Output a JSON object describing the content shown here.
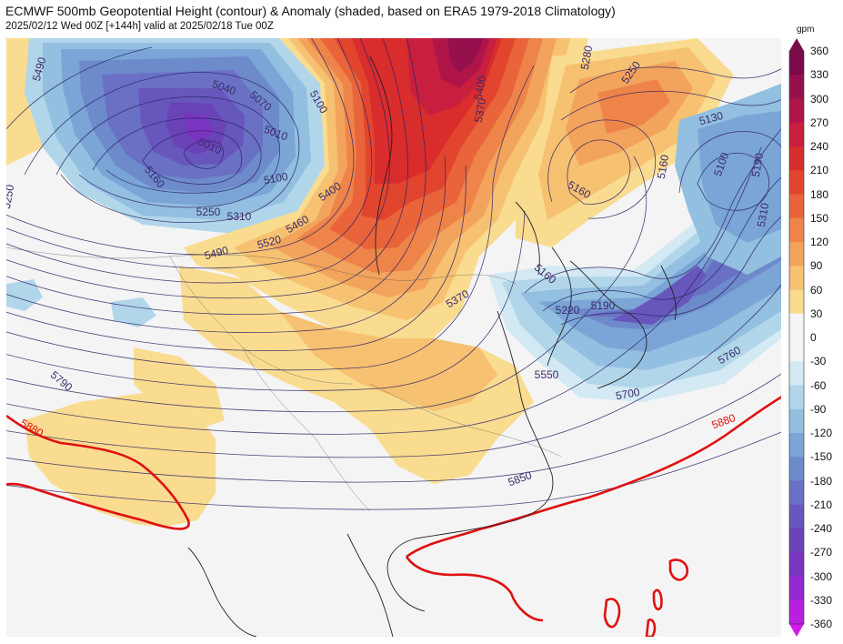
{
  "title": "ECMWF 500mb Geopotential Height (contour) & Anomaly (shaded, based on ERA5 1979-2018 Climatology)",
  "subtitle": "2025/02/12 Wed 00Z [+144h] valid at 2025/02/18 Tue 00Z",
  "colorbar": {
    "unit": "gpm",
    "ticks": [
      "360",
      "330",
      "300",
      "270",
      "240",
      "210",
      "180",
      "150",
      "120",
      "90",
      "60",
      "30",
      "0",
      "-30",
      "-60",
      "-90",
      "-120",
      "-150",
      "-180",
      "-210",
      "-240",
      "-270",
      "-300",
      "-330",
      "-360"
    ],
    "colors": [
      "#7a0a4a",
      "#96104d",
      "#b0154a",
      "#c81f3e",
      "#d92c2c",
      "#e2452e",
      "#e9643a",
      "#ee8449",
      "#f2a35c",
      "#f6c170",
      "#f9dc90",
      "#f5f5f5",
      "#f5f5f5",
      "#d3e9f3",
      "#b1d6ea",
      "#93bfe0",
      "#7aa5d6",
      "#6d8acb",
      "#6a70c4",
      "#6757bc",
      "#6a43b7",
      "#7a35c0",
      "#9528d0",
      "#b91fe0",
      "#d618ee"
    ]
  },
  "contour_labels": [
    {
      "text": "5490",
      "color": "#3c2a6a"
    },
    {
      "text": "5040",
      "color": "#3c2a6a"
    },
    {
      "text": "5070",
      "color": "#3c2a6a"
    },
    {
      "text": "5010",
      "color": "#3c2a6a"
    },
    {
      "text": "5010",
      "color": "#3c2a6a"
    },
    {
      "text": "5160",
      "color": "#3c2a6a"
    },
    {
      "text": "5100",
      "color": "#3c2a6a"
    },
    {
      "text": "5250",
      "color": "#3c2a6a"
    },
    {
      "text": "5310",
      "color": "#3c2a6a"
    },
    {
      "text": "5400",
      "color": "#3c2a6a"
    },
    {
      "text": "5460",
      "color": "#3c2a6a"
    },
    {
      "text": "5520",
      "color": "#3c2a6a"
    },
    {
      "text": "5490",
      "color": "#3c2a6a"
    },
    {
      "text": "5100",
      "color": "#3c2a6a"
    },
    {
      "text": "5400",
      "color": "#3c2a6a"
    },
    {
      "text": "5370",
      "color": "#3c2a6a"
    },
    {
      "text": "5250",
      "color": "#3c2a6a"
    },
    {
      "text": "5130",
      "color": "#3c2a6a"
    },
    {
      "text": "5160",
      "color": "#3c2a6a"
    },
    {
      "text": "5100",
      "color": "#3c2a6a"
    },
    {
      "text": "5190",
      "color": "#3c2a6a"
    },
    {
      "text": "5160",
      "color": "#3c2a6a"
    },
    {
      "text": "5310",
      "color": "#3c2a6a"
    },
    {
      "text": "5370",
      "color": "#3c2a6a"
    },
    {
      "text": "5160",
      "color": "#3c2a6a"
    },
    {
      "text": "5220",
      "color": "#3c2a6a"
    },
    {
      "text": "5190",
      "color": "#3c2a6a"
    },
    {
      "text": "5550",
      "color": "#3c2a6a"
    },
    {
      "text": "5700",
      "color": "#3c2a6a"
    },
    {
      "text": "5760",
      "color": "#3c2a6a"
    },
    {
      "text": "5790",
      "color": "#3c2a6a"
    },
    {
      "text": "5880",
      "color": "#e01010"
    },
    {
      "text": "5880",
      "color": "#e01010"
    },
    {
      "text": "5850",
      "color": "#3c2a6a"
    },
    {
      "text": "5250",
      "color": "#3c2a6a"
    },
    {
      "text": "5280",
      "color": "#3c2a6a"
    }
  ]
}
